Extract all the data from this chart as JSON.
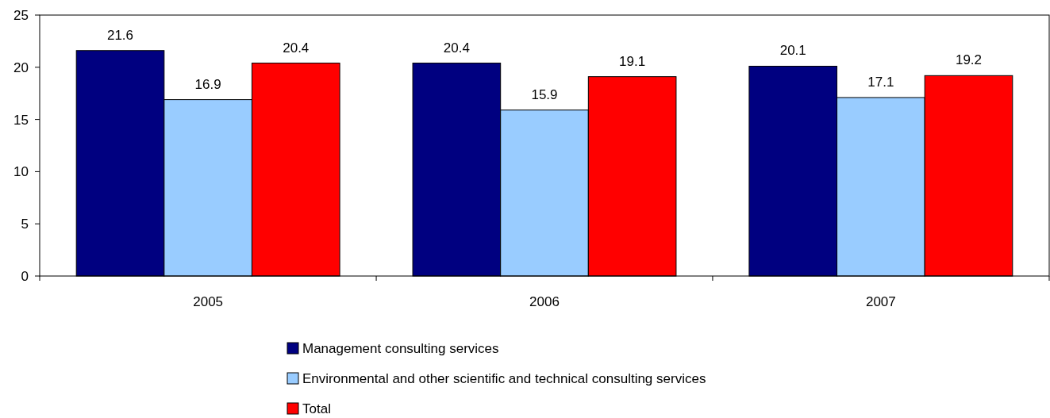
{
  "chart_data": {
    "type": "bar",
    "categories": [
      "2005",
      "2006",
      "2007"
    ],
    "series": [
      {
        "name": "Management consulting services",
        "color": "#000080",
        "values": [
          21.6,
          20.4,
          20.1
        ]
      },
      {
        "name": "Environmental and other scientific and technical consulting services",
        "color": "#99ccff",
        "values": [
          16.9,
          15.9,
          17.1
        ]
      },
      {
        "name": "Total",
        "color": "#ff0000",
        "values": [
          20.4,
          19.1,
          19.2
        ]
      }
    ],
    "ylim": [
      0,
      25
    ],
    "yticks": [
      0,
      5,
      10,
      15,
      20,
      25
    ],
    "data_labels": true,
    "legend": "bottom",
    "grid": false
  }
}
